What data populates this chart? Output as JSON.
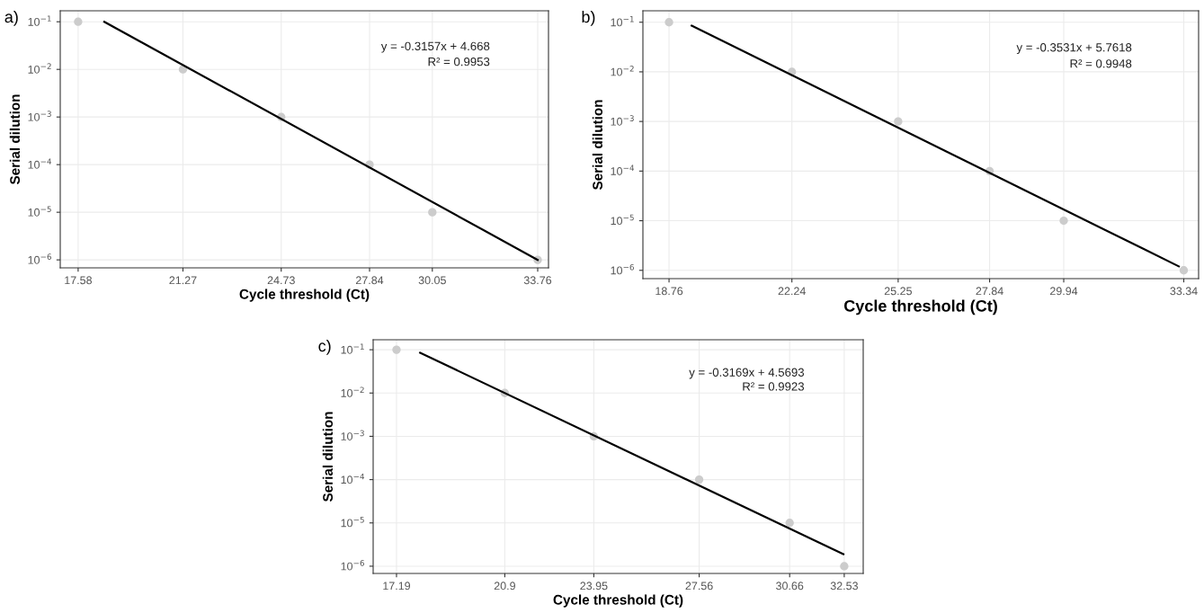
{
  "chart_data": [
    {
      "type": "scatter",
      "xlabel": "Cycle threshold (Ct)",
      "ylabel": "Serial dilution",
      "log": "y",
      "grid": true,
      "marker": "circle",
      "annotations": [
        "a)",
        "y = -0.3157x + 4.668",
        "R² = 0.9953"
      ],
      "xlim": [
        16.95,
        34.14
      ],
      "ylim": [
        6.8e-07,
        0.17
      ],
      "xticks": [
        17.58,
        21.27,
        24.73,
        27.84,
        30.05,
        33.76
      ],
      "yticks": [
        {
          "value": 1e-06,
          "label": "10$^{−6}$"
        },
        {
          "value": 1e-05,
          "label": "10$^{−5}$"
        },
        {
          "value": 0.0001,
          "label": "10$^{−4}$"
        },
        {
          "value": 0.001,
          "label": "10$^{−3}$"
        },
        {
          "value": 0.01,
          "label": "10$^{−2}$"
        },
        {
          "value": 0.1,
          "label": "10$^{−1}$"
        }
      ],
      "series": [
        {
          "color": "#cccccc",
          "x": [
            17.58,
            21.27,
            24.73,
            27.84,
            30.05,
            33.76
          ],
          "values": [
            0.1,
            0.01,
            0.001,
            0.0001,
            1e-05,
            1e-06
          ]
        },
        {
          "type": "line",
          "marker": "none",
          "color": "#000000",
          "x": [
            18.5,
            33.76
          ],
          "values": [
            0.1,
            1e-06
          ]
        }
      ]
    },
    {
      "type": "scatter",
      "xlabel": "Cycle threshold (Ct)",
      "ylabel": "Serial dilution",
      "log": "y",
      "grid": true,
      "marker": "circle",
      "annotations": [
        "b)",
        "y = -0.3531x + 5.7618",
        "R² = 0.9948"
      ],
      "xlim": [
        18.02,
        33.76
      ],
      "ylim": [
        6.8e-07,
        0.17
      ],
      "xticks": [
        18.76,
        22.24,
        25.25,
        27.84,
        29.94,
        33.34
      ],
      "yticks": [
        {
          "value": 1e-06,
          "label": "10$^{−6}$"
        },
        {
          "value": 1e-05,
          "label": "10$^{−5}$"
        },
        {
          "value": 0.0001,
          "label": "10$^{−4}$"
        },
        {
          "value": 0.001,
          "label": "10$^{−3}$"
        },
        {
          "value": 0.01,
          "label": "10$^{−2}$"
        },
        {
          "value": 0.1,
          "label": "10$^{−1}$"
        }
      ],
      "series": [
        {
          "color": "#cccccc",
          "x": [
            18.76,
            22.24,
            25.25,
            27.84,
            29.94,
            33.34
          ],
          "values": [
            0.1,
            0.01,
            0.001,
            0.0001,
            1e-05,
            1e-06
          ]
        },
        {
          "type": "line",
          "marker": "none",
          "color": "#000000",
          "x": [
            19.4,
            33.2
          ],
          "values": [
            0.085,
            1.2e-06
          ]
        }
      ]
    },
    {
      "type": "scatter",
      "xlabel": "Cycle threshold (Ct)",
      "ylabel": "Serial dilution",
      "log": "y",
      "grid": true,
      "marker": "circle",
      "annotations": [
        "c)",
        "y = -0.3169x + 4.5693",
        "R² = 0.9923"
      ],
      "xlim": [
        16.39,
        33.18
      ],
      "ylim": [
        6.8e-07,
        0.17
      ],
      "xticks": [
        17.19,
        20.9,
        23.95,
        27.56,
        30.66,
        32.53
      ],
      "yticks": [
        {
          "value": 1e-06,
          "label": "10$^{−6}$"
        },
        {
          "value": 1e-05,
          "label": "10$^{−5}$"
        },
        {
          "value": 0.0001,
          "label": "10$^{−4}$"
        },
        {
          "value": 0.001,
          "label": "10$^{−3}$"
        },
        {
          "value": 0.01,
          "label": "10$^{−2}$"
        },
        {
          "value": 0.1,
          "label": "10$^{−1}$"
        }
      ],
      "series": [
        {
          "color": "#cccccc",
          "x": [
            17.19,
            20.9,
            23.95,
            27.56,
            30.66,
            32.53
          ],
          "values": [
            0.1,
            0.01,
            0.001,
            0.0001,
            1e-05,
            1e-06
          ]
        },
        {
          "type": "line",
          "marker": "none",
          "color": "#000000",
          "x": [
            18.0,
            32.5
          ],
          "values": [
            0.085,
            1.9e-06
          ]
        }
      ]
    }
  ]
}
